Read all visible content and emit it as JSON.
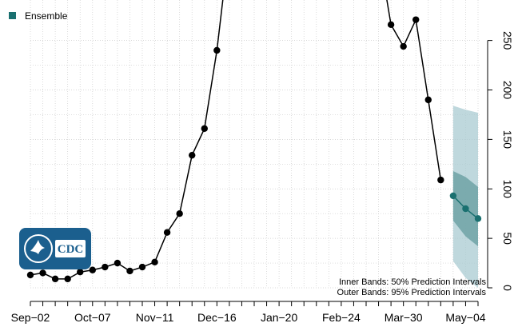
{
  "chart_data": {
    "type": "line",
    "x_tick_labels": [
      "Sep−02",
      "Oct−07",
      "Nov−11",
      "Dec−16",
      "Jan−20",
      "Feb−24",
      "Mar−30",
      "May−04"
    ],
    "y_ticks": [
      0,
      50,
      100,
      150,
      200,
      250
    ],
    "ylim": [
      0,
      275
    ],
    "grid": true,
    "legend_position": "top-left",
    "series": [
      {
        "name": "",
        "color": "#000000",
        "x": [
          "2024-09-02",
          "2024-09-09",
          "2024-09-16",
          "2024-09-23",
          "2024-09-30",
          "2024-10-07",
          "2024-10-14",
          "2024-10-21",
          "2024-10-28",
          "2024-11-04",
          "2024-11-11",
          "2024-11-18",
          "2024-11-25",
          "2024-12-02",
          "2024-12-09",
          "2024-12-16",
          "2025-03-24",
          "2025-03-31",
          "2025-04-07",
          "2025-04-14",
          "2025-04-21"
        ],
        "values": [
          13,
          15,
          9,
          9,
          16,
          18,
          21,
          25,
          17,
          21,
          26,
          56,
          75,
          134,
          161,
          240,
          266,
          244,
          271,
          190,
          109
        ],
        "segments": [
          [
            0,
            15
          ],
          [
            16,
            20
          ]
        ]
      },
      {
        "name": "Ensemble",
        "color": "#1a7070",
        "x": [
          "2025-04-28",
          "2025-05-05",
          "2025-05-12"
        ],
        "values": [
          93,
          80,
          70
        ],
        "pi50": {
          "lower": [
            68,
            52,
            42
          ],
          "upper": [
            118,
            112,
            102
          ]
        },
        "pi95": {
          "lower": [
            27,
            10,
            0
          ],
          "upper": [
            184,
            180,
            177
          ]
        }
      }
    ],
    "annotations": [
      "Inner Bands: 50% Prediction Intervals",
      "Outer Bands: 95% Prediction Intervals"
    ],
    "colors": {
      "line": "#000000",
      "ensemble": "#1a7070",
      "band95": "#a9cbd2",
      "band50": "#6fa3a6",
      "grid": "#cccccc",
      "logo_bg": "#1b5f8e"
    }
  },
  "logo": {
    "text": "CDC"
  }
}
